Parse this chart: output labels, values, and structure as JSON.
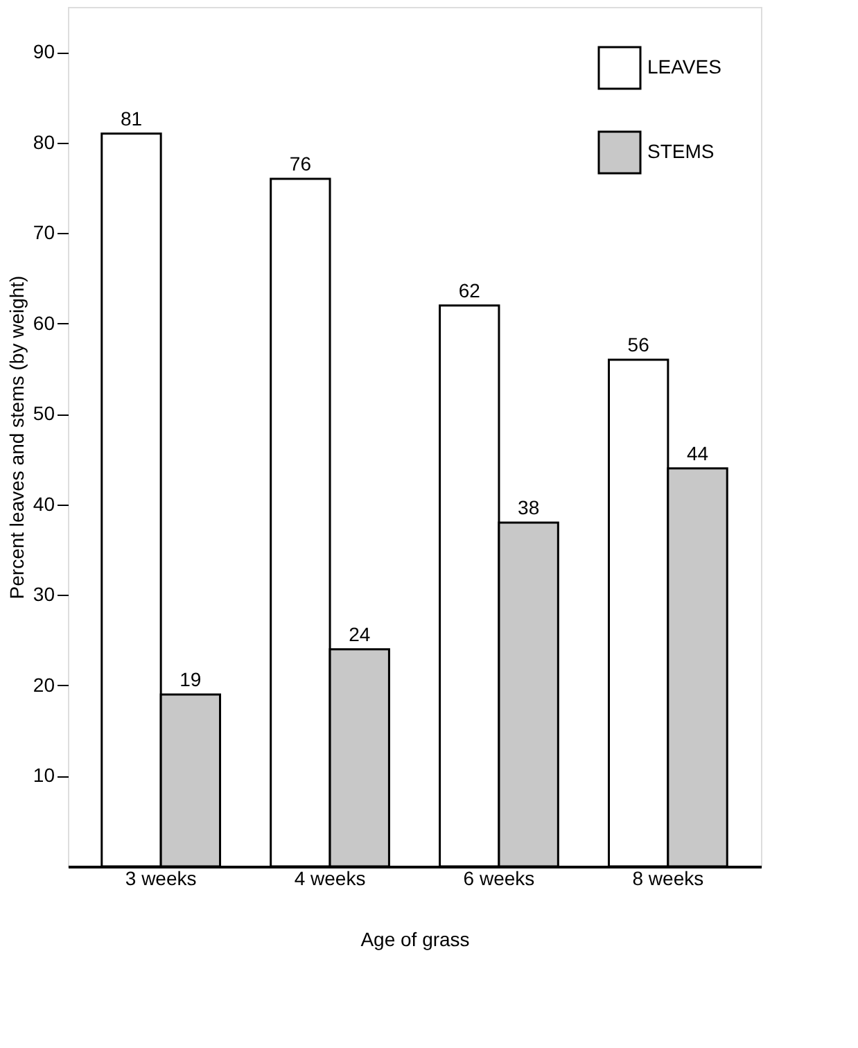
{
  "chart_data": {
    "type": "bar",
    "xlabel": "Age of grass",
    "ylabel": "Percent leaves and stems (by weight)",
    "categories": [
      "3 weeks",
      "4 weeks",
      "6 weeks",
      "8 weeks"
    ],
    "series": [
      {
        "name": "LEAVES",
        "color": "#ffffff",
        "values": [
          81,
          76,
          62,
          56
        ]
      },
      {
        "name": "STEMS",
        "color": "#c8c8c8",
        "values": [
          19,
          24,
          38,
          44
        ]
      }
    ],
    "ylim": [
      0,
      95
    ],
    "yticks": [
      10,
      20,
      30,
      40,
      50,
      60,
      70,
      80,
      90
    ],
    "data_labels": true,
    "legend": "top right",
    "grid": false
  }
}
